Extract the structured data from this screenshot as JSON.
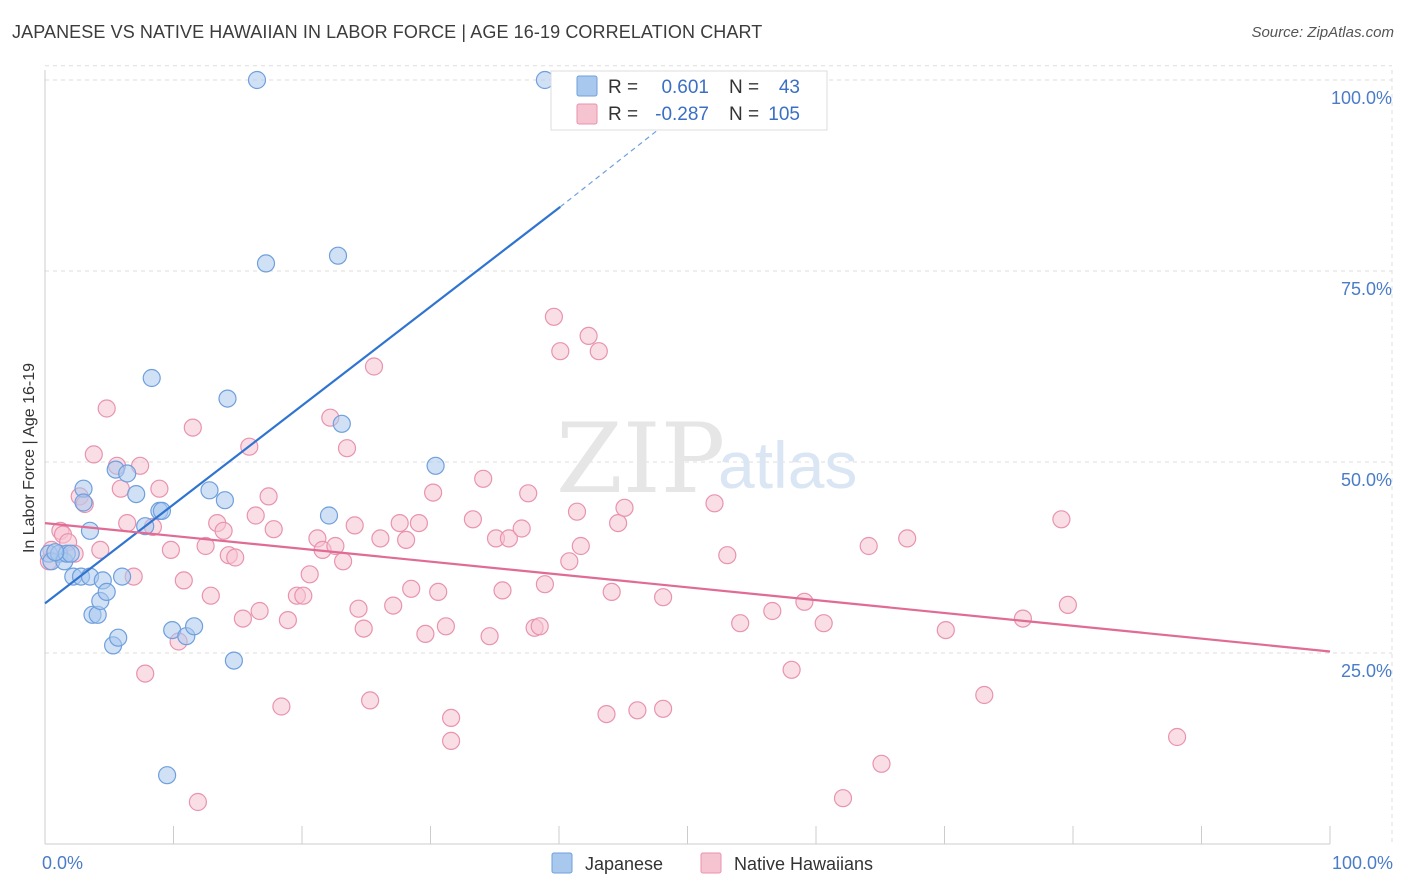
{
  "header": {
    "title": "JAPANESE VS NATIVE HAWAIIAN IN LABOR FORCE | AGE 16-19 CORRELATION CHART",
    "source": "Source: ZipAtlas.com"
  },
  "watermark": {
    "zip": "ZIP",
    "atlas": "atlas"
  },
  "colors": {
    "japanese_fill": "#a9c8ee",
    "japanese_stroke": "#6f9fdc",
    "japanese_line": "#2f74d0",
    "hawaiian_fill": "#f6c3d1",
    "hawaiian_stroke": "#e993ae",
    "hawaiian_line": "#e06b95",
    "tick_text": "#4a7cc7",
    "grid": "#dddddd"
  },
  "legend": {
    "rows": [
      {
        "r_label": "R =",
        "r_value": "0.601",
        "n_label": "N =",
        "n_value": "43",
        "series": "japanese"
      },
      {
        "r_label": "R =",
        "r_value": "-0.287",
        "n_label": "N =",
        "n_value": "105",
        "series": "hawaiian"
      }
    ],
    "bottom": [
      {
        "label": "Japanese",
        "series": "japanese"
      },
      {
        "label": "Native Hawaiians",
        "series": "hawaiian"
      }
    ]
  },
  "chart_data": {
    "type": "scatter",
    "title": "JAPANESE VS NATIVE HAWAIIAN IN LABOR FORCE | AGE 16-19 CORRELATION CHART",
    "xlabel": "",
    "ylabel": "In Labor Force | Age 16-19",
    "xlim": [
      0,
      100
    ],
    "ylim": [
      0,
      102
    ],
    "x_tick_labels": [
      "0.0%",
      "100.0%"
    ],
    "y_ticks": [
      25,
      50,
      75,
      100
    ],
    "y_tick_labels": [
      "25.0%",
      "50.0%",
      "75.0%",
      "100.0%"
    ],
    "grid": true,
    "legend_position": "top-center",
    "series": [
      {
        "name": "Japanese",
        "r": 0.601,
        "n": 43,
        "trend": {
          "x0": 0,
          "y0": 31.5,
          "x1": 40.1,
          "y1": 83.4,
          "dash_to_x": 48.1,
          "dash_to_y": 94
        },
        "points": [
          [
            0.3,
            38
          ],
          [
            0.5,
            37
          ],
          [
            1.1,
            38
          ],
          [
            1.5,
            37
          ],
          [
            1.7,
            38
          ],
          [
            2.0,
            38
          ],
          [
            2.2,
            35
          ],
          [
            2.8,
            35
          ],
          [
            3.0,
            46.5
          ],
          [
            3.0,
            44.7
          ],
          [
            3.5,
            35
          ],
          [
            3.5,
            41
          ],
          [
            3.7,
            30
          ],
          [
            4.1,
            30
          ],
          [
            4.3,
            31.8
          ],
          [
            4.5,
            34.5
          ],
          [
            4.8,
            33
          ],
          [
            5.3,
            26
          ],
          [
            5.5,
            49
          ],
          [
            5.7,
            27
          ],
          [
            6.0,
            35
          ],
          [
            6.4,
            48.5
          ],
          [
            7.1,
            45.8
          ],
          [
            7.8,
            41.6
          ],
          [
            8.3,
            61
          ],
          [
            8.9,
            43.6
          ],
          [
            9.1,
            43.6
          ],
          [
            9.5,
            9
          ],
          [
            9.9,
            28
          ],
          [
            11.0,
            27.2
          ],
          [
            11.6,
            28.5
          ],
          [
            12.8,
            46.3
          ],
          [
            14.0,
            45
          ],
          [
            14.2,
            58.3
          ],
          [
            14.7,
            24
          ],
          [
            16.5,
            100
          ],
          [
            17.2,
            76
          ],
          [
            22.1,
            43
          ],
          [
            22.8,
            77
          ],
          [
            23.1,
            55
          ],
          [
            30.4,
            49.5
          ],
          [
            38.9,
            100
          ],
          [
            0.8,
            38.2
          ]
        ]
      },
      {
        "name": "Native Hawaiians",
        "r": -0.287,
        "n": 105,
        "trend": {
          "x0": 0,
          "y0": 42,
          "x1": 100,
          "y1": 25.2
        },
        "points": [
          [
            0.3,
            37
          ],
          [
            0.5,
            38.5
          ],
          [
            1.2,
            41
          ],
          [
            1.4,
            40.5
          ],
          [
            1.8,
            39.5
          ],
          [
            2.3,
            38
          ],
          [
            2.7,
            45.5
          ],
          [
            3.1,
            44.5
          ],
          [
            3.8,
            51
          ],
          [
            4.3,
            38.5
          ],
          [
            4.8,
            57
          ],
          [
            5.6,
            49.5
          ],
          [
            5.9,
            46.5
          ],
          [
            6.4,
            42
          ],
          [
            6.9,
            35
          ],
          [
            7.4,
            49.5
          ],
          [
            7.8,
            22.3
          ],
          [
            8.4,
            41.5
          ],
          [
            8.9,
            46.5
          ],
          [
            9.8,
            38.5
          ],
          [
            10.4,
            26.5
          ],
          [
            10.8,
            34.5
          ],
          [
            11.5,
            54.5
          ],
          [
            11.9,
            5.5
          ],
          [
            12.5,
            39
          ],
          [
            12.9,
            32.5
          ],
          [
            13.4,
            42
          ],
          [
            13.9,
            41
          ],
          [
            14.3,
            37.8
          ],
          [
            14.8,
            37.5
          ],
          [
            15.4,
            29.5
          ],
          [
            15.9,
            52
          ],
          [
            16.4,
            43
          ],
          [
            16.7,
            30.5
          ],
          [
            17.4,
            45.5
          ],
          [
            17.8,
            41.2
          ],
          [
            18.4,
            18
          ],
          [
            18.9,
            29.3
          ],
          [
            19.6,
            32.5
          ],
          [
            20.1,
            32.5
          ],
          [
            20.6,
            35.3
          ],
          [
            21.2,
            40
          ],
          [
            21.6,
            38.5
          ],
          [
            22.2,
            55.8
          ],
          [
            22.6,
            39
          ],
          [
            23.2,
            37
          ],
          [
            23.5,
            51.8
          ],
          [
            24.1,
            41.7
          ],
          [
            24.4,
            30.8
          ],
          [
            24.8,
            28.2
          ],
          [
            25.3,
            18.8
          ],
          [
            25.6,
            62.5
          ],
          [
            26.1,
            40
          ],
          [
            27.1,
            31.2
          ],
          [
            27.6,
            42
          ],
          [
            28.1,
            39.8
          ],
          [
            28.5,
            33.4
          ],
          [
            29.1,
            42
          ],
          [
            29.6,
            27.5
          ],
          [
            30.2,
            46
          ],
          [
            30.6,
            33
          ],
          [
            31.2,
            28.5
          ],
          [
            31.6,
            16.5
          ],
          [
            31.6,
            13.5
          ],
          [
            33.3,
            42.5
          ],
          [
            34.1,
            47.8
          ],
          [
            34.6,
            27.2
          ],
          [
            35.1,
            40
          ],
          [
            35.6,
            33.2
          ],
          [
            36.1,
            40
          ],
          [
            37.1,
            41.3
          ],
          [
            37.6,
            45.9
          ],
          [
            38.1,
            28.3
          ],
          [
            38.5,
            28.5
          ],
          [
            38.9,
            34
          ],
          [
            39.6,
            69
          ],
          [
            40.1,
            64.5
          ],
          [
            40.8,
            37
          ],
          [
            41.4,
            43.5
          ],
          [
            41.7,
            39
          ],
          [
            42.3,
            66.5
          ],
          [
            43.1,
            64.5
          ],
          [
            43.7,
            17
          ],
          [
            44.1,
            33
          ],
          [
            44.6,
            42
          ],
          [
            45.1,
            44
          ],
          [
            46.1,
            17.5
          ],
          [
            48.1,
            32.3
          ],
          [
            48.1,
            17.7
          ],
          [
            52.1,
            44.6
          ],
          [
            53.1,
            37.8
          ],
          [
            54.1,
            28.9
          ],
          [
            56.6,
            30.5
          ],
          [
            58.1,
            22.8
          ],
          [
            59.1,
            31.7
          ],
          [
            60.6,
            28.9
          ],
          [
            62.1,
            6
          ],
          [
            64.1,
            39
          ],
          [
            65.1,
            10.5
          ],
          [
            67.1,
            40
          ],
          [
            70.1,
            28
          ],
          [
            73.1,
            19.5
          ],
          [
            76.1,
            29.5
          ],
          [
            79.1,
            42.5
          ],
          [
            79.6,
            31.3
          ],
          [
            88.1,
            14
          ]
        ]
      }
    ]
  }
}
